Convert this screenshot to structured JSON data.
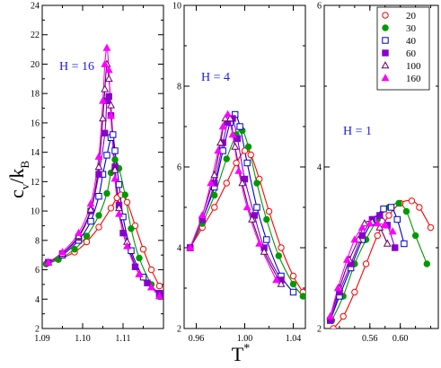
{
  "chart_data": [
    {
      "type": "line",
      "annotation": "H = 16",
      "xlim": [
        1.09,
        1.12
      ],
      "ylim": [
        2,
        24
      ],
      "xticks": [
        "1.09",
        "1.10",
        "1.11"
      ],
      "xtick_values": [
        1.09,
        1.1,
        1.11
      ],
      "yticks": [
        "2",
        "4",
        "6",
        "8",
        "10",
        "12",
        "14",
        "16",
        "18",
        "20",
        "22",
        "24"
      ],
      "ytick_values": [
        2,
        4,
        6,
        8,
        10,
        12,
        14,
        16,
        18,
        20,
        22,
        24
      ],
      "series": [
        {
          "name": "20",
          "color": "#ff0000",
          "marker": "circle-open",
          "points": [
            [
              1.091,
              6.4
            ],
            [
              1.094,
              6.7
            ],
            [
              1.098,
              7.2
            ],
            [
              1.101,
              7.9
            ],
            [
              1.104,
              8.9
            ],
            [
              1.107,
              10.2
            ],
            [
              1.1085,
              10.9
            ],
            [
              1.1095,
              11.1
            ],
            [
              1.111,
              10.6
            ],
            [
              1.113,
              9.0
            ],
            [
              1.115,
              7.4
            ],
            [
              1.117,
              6.0
            ],
            [
              1.119,
              4.9
            ]
          ]
        },
        {
          "name": "30",
          "color": "#009900",
          "marker": "circle-filled",
          "points": [
            [
              1.091,
              6.4
            ],
            [
              1.094,
              6.7
            ],
            [
              1.098,
              7.4
            ],
            [
              1.101,
              8.3
            ],
            [
              1.104,
              9.7
            ],
            [
              1.106,
              11.2
            ],
            [
              1.107,
              12.6
            ],
            [
              1.108,
              13.5
            ],
            [
              1.109,
              12.9
            ],
            [
              1.1105,
              11.1
            ],
            [
              1.112,
              8.8
            ],
            [
              1.114,
              6.8
            ],
            [
              1.117,
              5.0
            ],
            [
              1.119,
              4.3
            ]
          ]
        },
        {
          "name": "40",
          "color": "#0000cc",
          "marker": "square-open",
          "points": [
            [
              1.0915,
              6.5
            ],
            [
              1.095,
              7.0
            ],
            [
              1.099,
              8.0
            ],
            [
              1.102,
              9.3
            ],
            [
              1.104,
              11.0
            ],
            [
              1.105,
              12.5
            ],
            [
              1.106,
              13.8
            ],
            [
              1.107,
              15.0
            ],
            [
              1.1075,
              15.2
            ],
            [
              1.108,
              14.1
            ],
            [
              1.109,
              11.8
            ],
            [
              1.11,
              9.6
            ],
            [
              1.112,
              7.3
            ],
            [
              1.115,
              5.5
            ],
            [
              1.119,
              4.3
            ]
          ]
        },
        {
          "name": "60",
          "color": "#8800cc",
          "marker": "square-filled",
          "points": [
            [
              1.0915,
              6.5
            ],
            [
              1.095,
              7.1
            ],
            [
              1.099,
              8.2
            ],
            [
              1.102,
              10.0
            ],
            [
              1.104,
              12.5
            ],
            [
              1.1055,
              15.3
            ],
            [
              1.106,
              17.5
            ],
            [
              1.1065,
              17.8
            ],
            [
              1.107,
              16.5
            ],
            [
              1.108,
              13.0
            ],
            [
              1.109,
              10.4
            ],
            [
              1.11,
              8.5
            ],
            [
              1.113,
              6.2
            ],
            [
              1.116,
              5.1
            ],
            [
              1.119,
              4.4
            ]
          ]
        },
        {
          "name": "100",
          "color": "#660066",
          "marker": "triangle-open",
          "points": [
            [
              1.0915,
              6.5
            ],
            [
              1.095,
              7.1
            ],
            [
              1.099,
              8.3
            ],
            [
              1.102,
              10.1
            ],
            [
              1.104,
              13.0
            ],
            [
              1.105,
              16.3
            ],
            [
              1.1055,
              18.3
            ],
            [
              1.106,
              20.0
            ],
            [
              1.1065,
              19.0
            ],
            [
              1.107,
              17.2
            ],
            [
              1.108,
              12.8
            ],
            [
              1.109,
              10.2
            ],
            [
              1.111,
              7.9
            ],
            [
              1.114,
              5.7
            ],
            [
              1.117,
              4.8
            ],
            [
              1.119,
              4.2
            ]
          ]
        },
        {
          "name": "160",
          "color": "#ff00ff",
          "marker": "triangle-filled",
          "points": [
            [
              1.0915,
              6.5
            ],
            [
              1.095,
              7.2
            ],
            [
              1.099,
              8.5
            ],
            [
              1.102,
              10.5
            ],
            [
              1.104,
              13.7
            ],
            [
              1.105,
              17.5
            ],
            [
              1.1055,
              20.0
            ],
            [
              1.106,
              21.1
            ],
            [
              1.1065,
              19.6
            ],
            [
              1.107,
              16.5
            ],
            [
              1.108,
              12.2
            ],
            [
              1.109,
              9.8
            ],
            [
              1.111,
              7.6
            ],
            [
              1.114,
              5.7
            ],
            [
              1.117,
              4.8
            ],
            [
              1.119,
              4.2
            ]
          ]
        }
      ]
    },
    {
      "type": "line",
      "annotation": "H = 4",
      "xlim": [
        0.95,
        1.05
      ],
      "ylim": [
        2,
        10
      ],
      "xticks": [
        "0.96",
        "1.00",
        "1.04"
      ],
      "xtick_values": [
        0.96,
        1.0,
        1.04
      ],
      "yticks": [
        "2",
        "4",
        "6",
        "8",
        "10"
      ],
      "ytick_values": [
        2,
        4,
        6,
        8,
        10
      ],
      "series": [
        {
          "name": "20",
          "color": "#ff0000",
          "marker": "circle-open",
          "points": [
            [
              0.955,
              4.0
            ],
            [
              0.965,
              4.5
            ],
            [
              0.975,
              5.0
            ],
            [
              0.985,
              5.6
            ],
            [
              0.993,
              6.1
            ],
            [
              1.0,
              6.4
            ],
            [
              1.005,
              6.3
            ],
            [
              1.012,
              5.7
            ],
            [
              1.02,
              4.9
            ],
            [
              1.03,
              4.0
            ],
            [
              1.04,
              3.3
            ],
            [
              1.048,
              2.9
            ]
          ]
        },
        {
          "name": "30",
          "color": "#009900",
          "marker": "circle-filled",
          "points": [
            [
              0.955,
              4.0
            ],
            [
              0.965,
              4.6
            ],
            [
              0.975,
              5.3
            ],
            [
              0.985,
              6.2
            ],
            [
              0.993,
              6.8
            ],
            [
              0.998,
              6.9
            ],
            [
              1.003,
              6.5
            ],
            [
              1.01,
              5.6
            ],
            [
              1.018,
              4.7
            ],
            [
              1.028,
              3.8
            ],
            [
              1.04,
              3.1
            ],
            [
              1.048,
              2.8
            ]
          ]
        },
        {
          "name": "40",
          "color": "#0000cc",
          "marker": "square-open",
          "points": [
            [
              0.955,
              4.0
            ],
            [
              0.965,
              4.7
            ],
            [
              0.975,
              5.5
            ],
            [
              0.982,
              6.4
            ],
            [
              0.988,
              7.1
            ],
            [
              0.992,
              7.3
            ],
            [
              0.996,
              7.0
            ],
            [
              1.002,
              6.1
            ],
            [
              1.01,
              5.0
            ],
            [
              1.018,
              4.2
            ],
            [
              1.03,
              3.3
            ],
            [
              1.04,
              2.9
            ]
          ]
        },
        {
          "name": "60",
          "color": "#8800cc",
          "marker": "square-filled",
          "points": [
            [
              0.955,
              4.0
            ],
            [
              0.965,
              4.7
            ],
            [
              0.975,
              5.6
            ],
            [
              0.982,
              6.6
            ],
            [
              0.986,
              7.1
            ],
            [
              0.99,
              7.2
            ],
            [
              0.994,
              6.7
            ],
            [
              1.0,
              5.7
            ],
            [
              1.008,
              4.8
            ],
            [
              1.016,
              4.0
            ],
            [
              1.03,
              3.2
            ]
          ]
        },
        {
          "name": "100",
          "color": "#660066",
          "marker": "triangle-open",
          "points": [
            [
              0.955,
              4.0
            ],
            [
              0.965,
              4.8
            ],
            [
              0.975,
              5.8
            ],
            [
              0.98,
              6.6
            ],
            [
              0.984,
              7.2
            ],
            [
              0.988,
              7.2
            ],
            [
              0.992,
              6.5
            ],
            [
              0.998,
              5.6
            ],
            [
              1.006,
              4.7
            ],
            [
              1.016,
              3.9
            ],
            [
              1.03,
              3.1
            ]
          ]
        },
        {
          "name": "160",
          "color": "#ff00ff",
          "marker": "triangle-filled",
          "points": [
            [
              0.955,
              4.0
            ],
            [
              0.965,
              4.8
            ],
            [
              0.972,
              5.6
            ],
            [
              0.978,
              6.4
            ],
            [
              0.982,
              7.0
            ],
            [
              0.986,
              7.3
            ],
            [
              0.99,
              6.8
            ],
            [
              0.995,
              5.9
            ],
            [
              1.002,
              5.0
            ],
            [
              1.012,
              4.1
            ],
            [
              1.026,
              3.2
            ]
          ]
        }
      ]
    },
    {
      "type": "line",
      "annotation": "H = 1",
      "xlim": [
        0.5,
        0.65
      ],
      "ylim": [
        2,
        6
      ],
      "xticks": [
        "0.56",
        "0.60"
      ],
      "xtick_values": [
        0.56,
        0.6
      ],
      "yticks": [
        "2",
        "4",
        "6"
      ],
      "ytick_values": [
        2,
        4,
        6
      ],
      "series": [
        {
          "name": "20",
          "color": "#ff0000",
          "marker": "circle-open",
          "points": [
            [
              0.512,
              2.0
            ],
            [
              0.525,
              2.15
            ],
            [
              0.54,
              2.45
            ],
            [
              0.555,
              2.8
            ],
            [
              0.57,
              3.15
            ],
            [
              0.585,
              3.4
            ],
            [
              0.6,
              3.55
            ],
            [
              0.615,
              3.58
            ],
            [
              0.625,
              3.5
            ],
            [
              0.64,
              3.25
            ]
          ]
        },
        {
          "name": "30",
          "color": "#009900",
          "marker": "circle-filled",
          "points": [
            [
              0.51,
              2.1
            ],
            [
              0.525,
              2.4
            ],
            [
              0.54,
              2.8
            ],
            [
              0.555,
              3.1
            ],
            [
              0.57,
              3.35
            ],
            [
              0.585,
              3.5
            ],
            [
              0.598,
              3.55
            ],
            [
              0.608,
              3.45
            ],
            [
              0.62,
              3.15
            ],
            [
              0.635,
              2.8
            ]
          ]
        },
        {
          "name": "40",
          "color": "#0000cc",
          "marker": "square-open",
          "points": [
            [
              0.508,
              2.1
            ],
            [
              0.52,
              2.4
            ],
            [
              0.535,
              2.75
            ],
            [
              0.55,
              3.1
            ],
            [
              0.565,
              3.35
            ],
            [
              0.578,
              3.48
            ],
            [
              0.588,
              3.5
            ],
            [
              0.596,
              3.35
            ],
            [
              0.605,
              3.05
            ]
          ]
        },
        {
          "name": "60",
          "color": "#8800cc",
          "marker": "square-filled",
          "points": [
            [
              0.508,
              2.1
            ],
            [
              0.52,
              2.45
            ],
            [
              0.535,
              2.8
            ],
            [
              0.55,
              3.15
            ],
            [
              0.563,
              3.35
            ],
            [
              0.573,
              3.4
            ],
            [
              0.583,
              3.28
            ],
            [
              0.593,
              3.0
            ]
          ]
        },
        {
          "name": "100",
          "color": "#660066",
          "marker": "triangle-open",
          "points": [
            [
              0.508,
              2.15
            ],
            [
              0.52,
              2.5
            ],
            [
              0.533,
              2.85
            ],
            [
              0.545,
              3.1
            ],
            [
              0.553,
              3.3
            ],
            [
              0.563,
              3.32
            ],
            [
              0.573,
              3.25
            ],
            [
              0.583,
              3.05
            ]
          ]
        },
        {
          "name": "160",
          "color": "#ff00ff",
          "marker": "triangle-filled",
          "points": [
            [
              0.508,
              2.15
            ],
            [
              0.518,
              2.5
            ],
            [
              0.53,
              2.85
            ],
            [
              0.54,
              3.1
            ],
            [
              0.55,
              3.25
            ],
            [
              0.56,
              3.3
            ],
            [
              0.57,
              3.3
            ],
            [
              0.58,
              3.28
            ],
            [
              0.59,
              3.2
            ]
          ]
        }
      ]
    }
  ],
  "ylabel": {
    "main": "c",
    "sub1": "v",
    "mid": "/k",
    "sub2": "B"
  },
  "xlabel": {
    "main": "T",
    "sup": "*"
  },
  "legend": {
    "placement": "top-right of third panel",
    "entries": [
      {
        "label": "20",
        "color": "#ff0000",
        "marker": "circle-open"
      },
      {
        "label": "30",
        "color": "#009900",
        "marker": "circle-filled"
      },
      {
        "label": "40",
        "color": "#0000cc",
        "marker": "square-open"
      },
      {
        "label": "60",
        "color": "#8800cc",
        "marker": "square-filled"
      },
      {
        "label": "100",
        "color": "#660066",
        "marker": "triangle-open"
      },
      {
        "label": "160",
        "color": "#ff00ff",
        "marker": "triangle-filled"
      }
    ]
  }
}
